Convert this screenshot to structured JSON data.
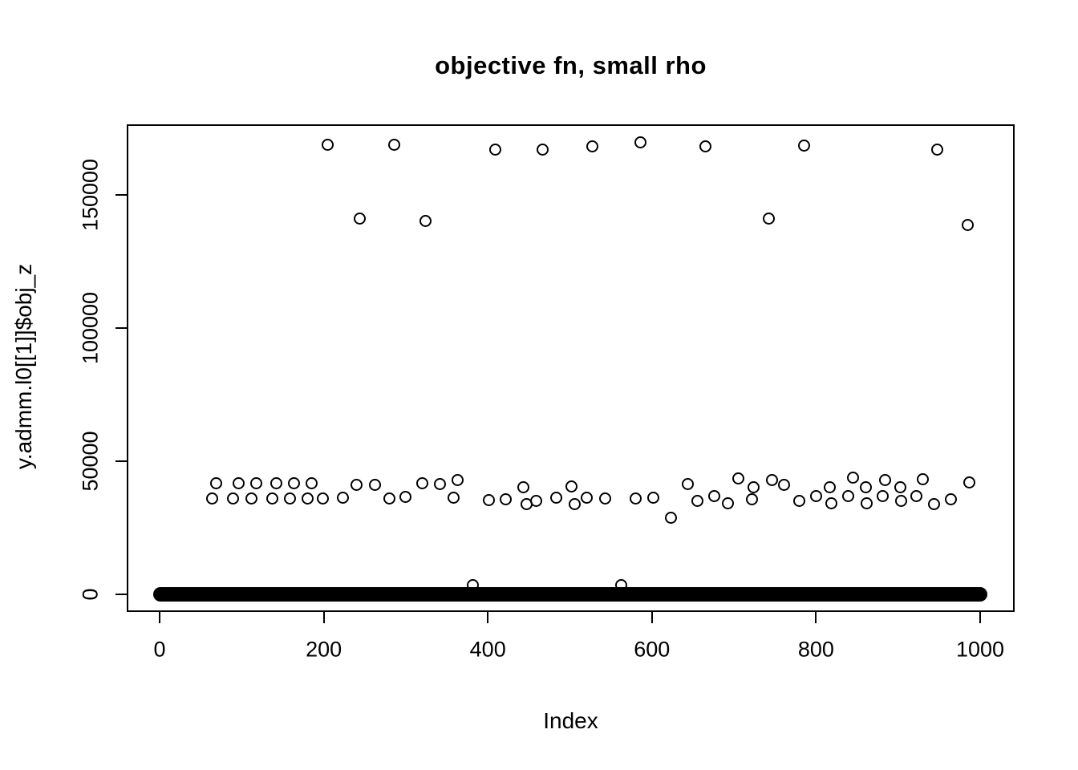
{
  "chart_data": {
    "type": "scatter",
    "title": "objective fn, small rho",
    "xlabel": "Index",
    "ylabel": "y.admm.l0[[1]]$obj_z",
    "x_ticks": [
      0,
      200,
      400,
      600,
      800,
      1000
    ],
    "y_ticks": [
      0,
      50000,
      100000,
      150000
    ],
    "xlim": [
      -40,
      1042
    ],
    "ylim": [
      -6600,
      176400
    ],
    "grid": false,
    "legend": false,
    "marker": "open-circle",
    "marker_color": "#000000",
    "background": "#ffffff",
    "series": [
      {
        "name": "zero-cluster",
        "style": "dense-filled-band",
        "y": 0,
        "x_from": 1,
        "x_to": 1000
      },
      {
        "name": "near-zero-bumps",
        "style": "points",
        "points": [
          [
            382,
            3500
          ],
          [
            563,
            3500
          ]
        ]
      },
      {
        "name": "mid-cluster",
        "style": "points",
        "points": [
          [
            64,
            36000
          ],
          [
            69,
            41600
          ],
          [
            89,
            36000
          ],
          [
            96,
            41600
          ],
          [
            112,
            36000
          ],
          [
            118,
            41600
          ],
          [
            137,
            36000
          ],
          [
            142,
            41600
          ],
          [
            159,
            36000
          ],
          [
            164,
            41600
          ],
          [
            180,
            36000
          ],
          [
            185,
            41600
          ],
          [
            199,
            36000
          ],
          [
            223,
            36400
          ],
          [
            240,
            41000
          ],
          [
            262,
            41000
          ],
          [
            280,
            35900
          ],
          [
            300,
            36700
          ],
          [
            320,
            41600
          ],
          [
            342,
            41300
          ],
          [
            358,
            36400
          ],
          [
            363,
            42800
          ],
          [
            401,
            35500
          ],
          [
            422,
            35800
          ],
          [
            443,
            40300
          ],
          [
            447,
            34000
          ],
          [
            459,
            35200
          ],
          [
            483,
            36400
          ],
          [
            502,
            40600
          ],
          [
            506,
            34000
          ],
          [
            521,
            36400
          ],
          [
            543,
            36100
          ],
          [
            580,
            36100
          ],
          [
            602,
            36400
          ],
          [
            623,
            28900
          ],
          [
            644,
            41500
          ],
          [
            655,
            35200
          ],
          [
            676,
            37000
          ],
          [
            693,
            34300
          ],
          [
            705,
            43600
          ],
          [
            722,
            35800
          ],
          [
            724,
            40300
          ],
          [
            746,
            43000
          ],
          [
            761,
            41200
          ],
          [
            780,
            35200
          ],
          [
            800,
            37000
          ],
          [
            817,
            40300
          ],
          [
            819,
            34300
          ],
          [
            839,
            37000
          ],
          [
            845,
            43900
          ],
          [
            861,
            40300
          ],
          [
            862,
            34300
          ],
          [
            881,
            37000
          ],
          [
            884,
            43000
          ],
          [
            903,
            40300
          ],
          [
            904,
            35200
          ],
          [
            922,
            37000
          ],
          [
            930,
            43300
          ],
          [
            944,
            34000
          ],
          [
            964,
            35800
          ],
          [
            987,
            42100
          ]
        ]
      },
      {
        "name": "upper-outliers",
        "style": "points",
        "points": [
          [
            205,
            168700
          ],
          [
            286,
            168700
          ],
          [
            409,
            167100
          ],
          [
            467,
            167100
          ],
          [
            527,
            168100
          ],
          [
            586,
            169700
          ],
          [
            665,
            168200
          ],
          [
            785,
            168600
          ],
          [
            948,
            167000
          ]
        ]
      },
      {
        "name": "mid-outliers",
        "style": "points",
        "points": [
          [
            244,
            141100
          ],
          [
            324,
            140100
          ],
          [
            742,
            141000
          ],
          [
            985,
            138800
          ]
        ]
      }
    ]
  }
}
